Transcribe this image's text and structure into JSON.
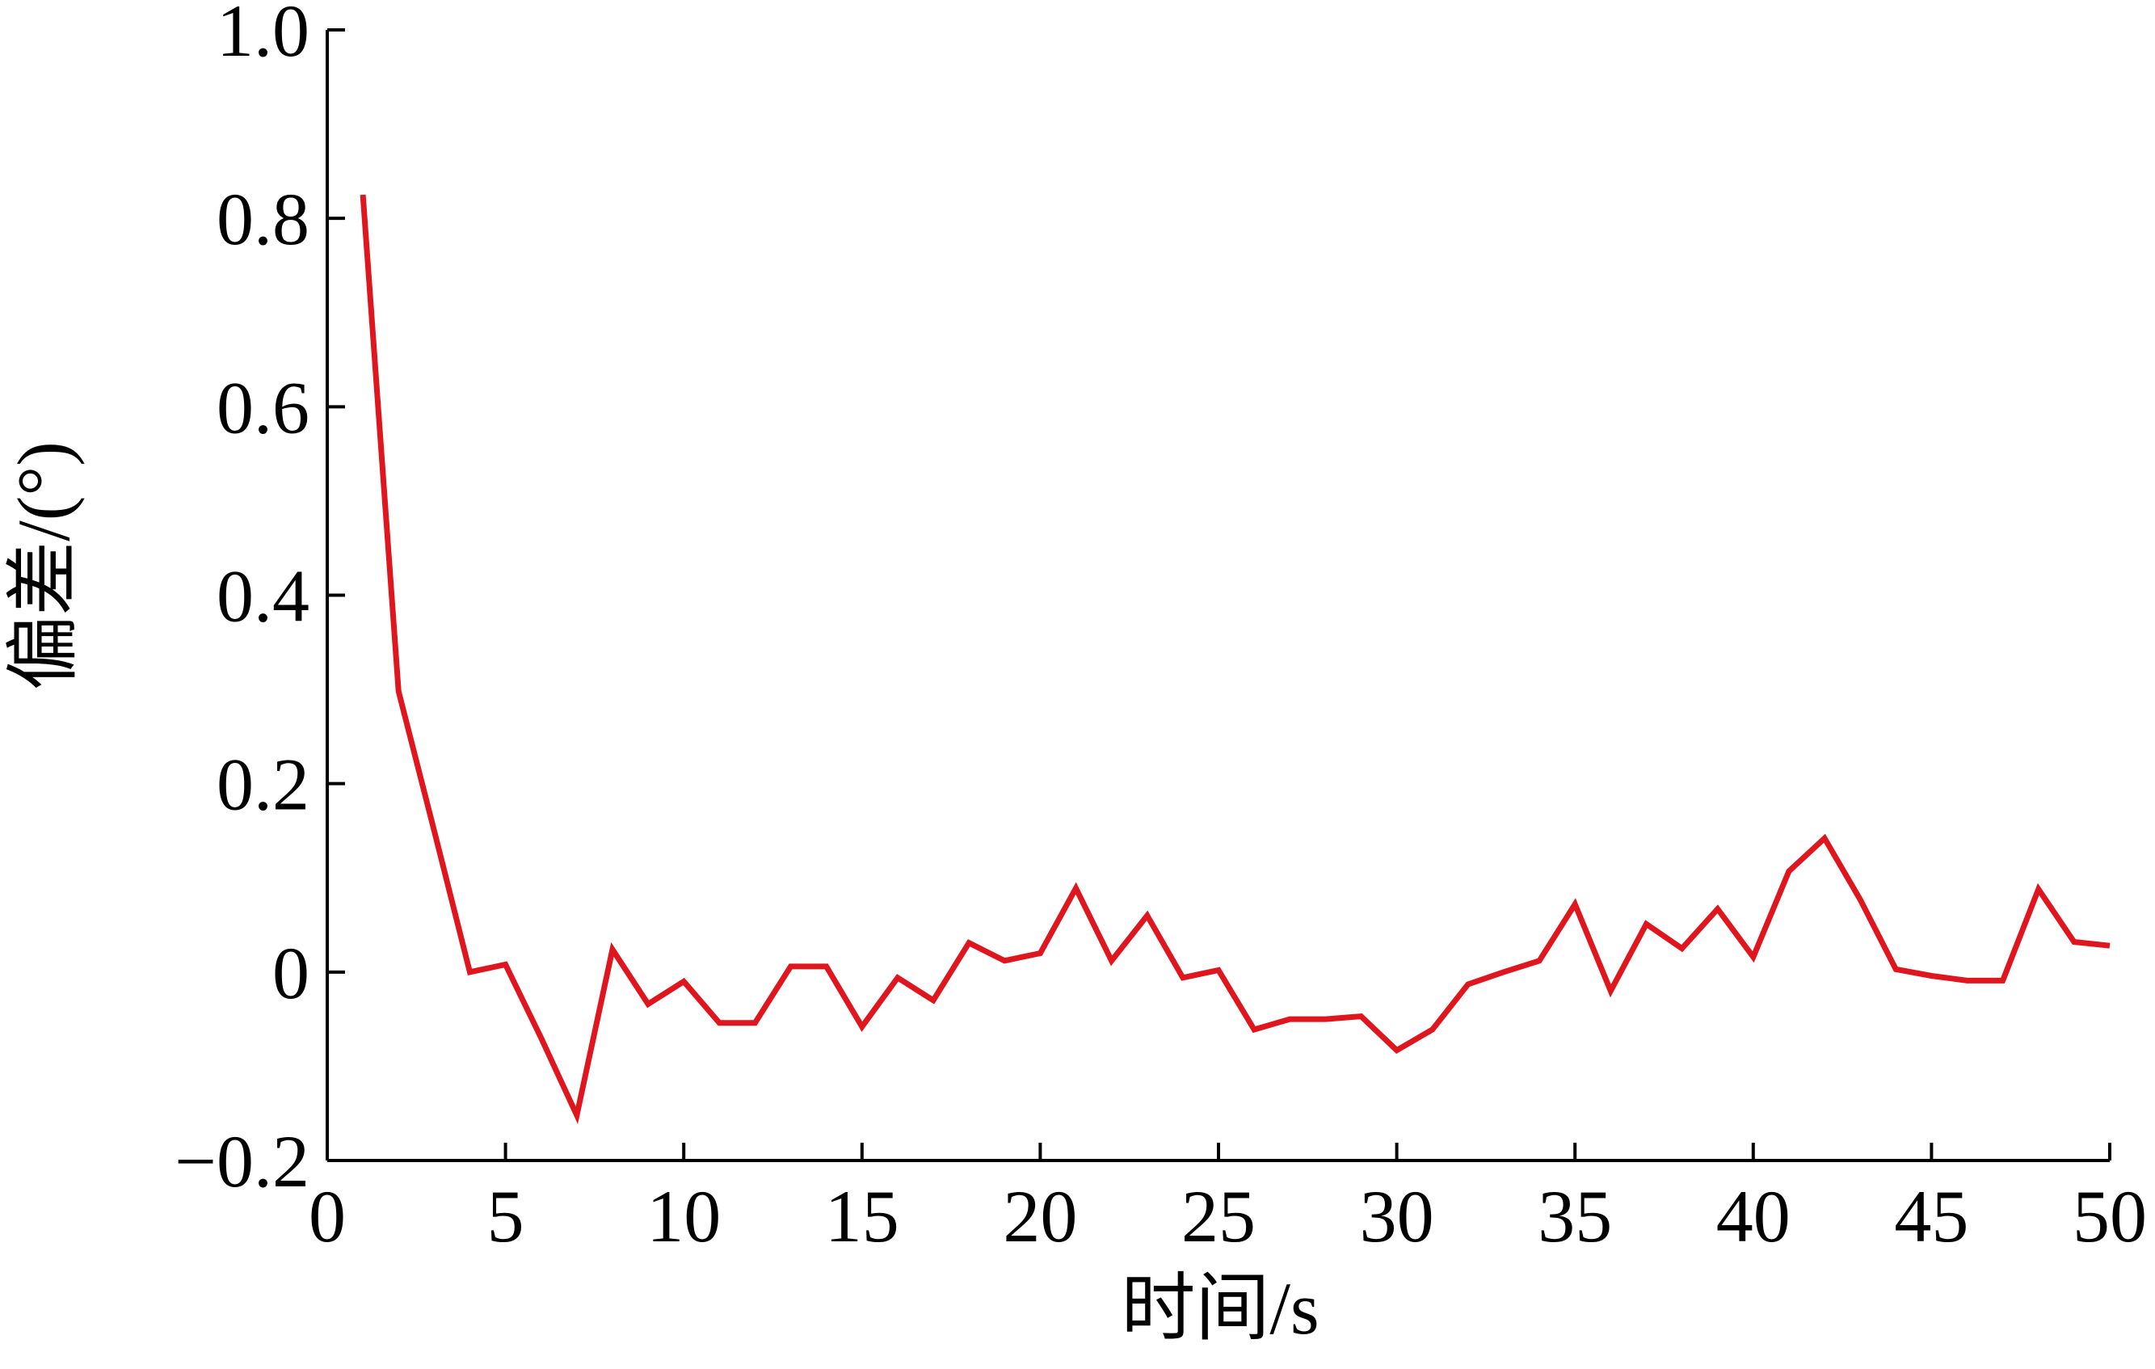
{
  "chart_data": {
    "type": "line",
    "x_label": "时间/s",
    "y_label": "偏差/(°)",
    "x": [
      1,
      2,
      3,
      4,
      5,
      6,
      7,
      8,
      9,
      10,
      11,
      12,
      13,
      14,
      15,
      16,
      17,
      18,
      19,
      20,
      21,
      22,
      23,
      24,
      25,
      26,
      27,
      28,
      29,
      30,
      31,
      32,
      33,
      34,
      35,
      36,
      37,
      38,
      39,
      40,
      41,
      42,
      43,
      44,
      45,
      46,
      47,
      48,
      49,
      50
    ],
    "series": [
      {
        "color": "#e0161f",
        "values": [
          0.825,
          0.298,
          0.15,
          0.0,
          0.008,
          -0.07,
          -0.152,
          0.024,
          -0.034,
          -0.01,
          -0.054,
          -0.054,
          0.006,
          0.006,
          -0.058,
          -0.006,
          -0.03,
          0.031,
          0.012,
          0.02,
          0.089,
          0.012,
          0.06,
          -0.006,
          0.002,
          -0.061,
          -0.05,
          -0.05,
          -0.047,
          -0.083,
          -0.061,
          -0.013,
          0.0,
          0.012,
          0.072,
          -0.02,
          0.051,
          0.025,
          0.067,
          0.016,
          0.107,
          0.142,
          0.077,
          0.003,
          -0.004,
          -0.009,
          -0.009,
          0.088,
          0.032,
          0.028
        ]
      }
    ],
    "xlim": [
      0,
      50
    ],
    "xticks": [
      0,
      5,
      10,
      15,
      20,
      25,
      30,
      35,
      40,
      45,
      50
    ],
    "ylim": [
      -0.2,
      1
    ],
    "yticks": [
      {
        "value": -0.2,
        "label": "−0.2"
      },
      0,
      0.2,
      0.4,
      0.6,
      0.8,
      {
        "value": 1,
        "label": "1.0"
      }
    ]
  }
}
